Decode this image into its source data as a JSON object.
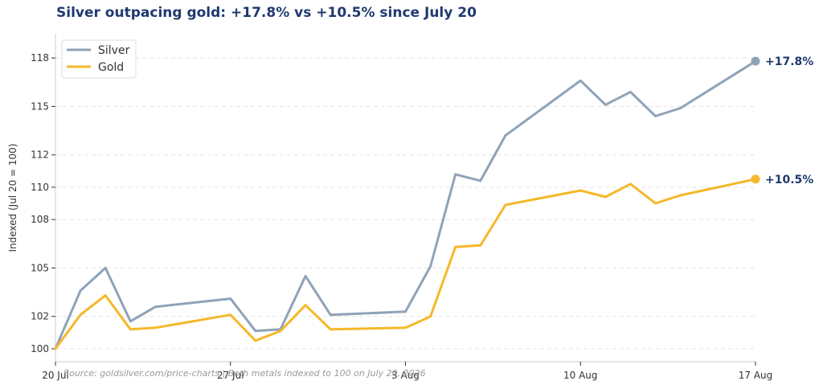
{
  "chart_data": {
    "type": "line",
    "title": "Silver outpacing gold: +17.8% vs +10.5% since July 20",
    "ylabel": "Indexed (Jul 20 = 100)",
    "xlabel": "",
    "source": "Source: goldsilver.com/price-charts | Both metals indexed to 100 on July 20, 2026",
    "ylim": [
      99.2,
      119.5
    ],
    "xlim": [
      "2026-07-20",
      "2026-08-17"
    ],
    "yticks": [
      100,
      102,
      105,
      108,
      110,
      112,
      115,
      118
    ],
    "ytick_labels": [
      "100",
      "102",
      "105",
      "108",
      "110",
      "112",
      "115",
      "118"
    ],
    "xticks": [
      "2026-07-20",
      "2026-07-27",
      "2026-08-03",
      "2026-08-10",
      "2026-08-17"
    ],
    "xtick_labels": [
      "20 Jul",
      "27 Jul",
      "3 Aug",
      "10 Aug",
      "17 Aug"
    ],
    "grid": "horizontal dashed",
    "legend": "top-left",
    "series": [
      {
        "name": "Silver",
        "color": "#8fa3b8",
        "end_label": "+17.8%",
        "points": [
          [
            "2026-07-20",
            100.0
          ],
          [
            "2026-07-21",
            103.6
          ],
          [
            "2026-07-22",
            105.0
          ],
          [
            "2026-07-23",
            101.7
          ],
          [
            "2026-07-24",
            102.6
          ],
          [
            "2026-07-27",
            103.1
          ],
          [
            "2026-07-28",
            101.1
          ],
          [
            "2026-07-29",
            101.2
          ],
          [
            "2026-07-30",
            104.5
          ],
          [
            "2026-07-31",
            102.1
          ],
          [
            "2026-08-03",
            102.3
          ],
          [
            "2026-08-04",
            105.1
          ],
          [
            "2026-08-05",
            110.8
          ],
          [
            "2026-08-06",
            110.4
          ],
          [
            "2026-08-07",
            113.2
          ],
          [
            "2026-08-10",
            116.6
          ],
          [
            "2026-08-11",
            115.1
          ],
          [
            "2026-08-12",
            115.9
          ],
          [
            "2026-08-13",
            114.4
          ],
          [
            "2026-08-14",
            114.9
          ],
          [
            "2026-08-17",
            117.8
          ]
        ]
      },
      {
        "name": "Gold",
        "color": "#f5b82a",
        "end_label": "+10.5%",
        "points": [
          [
            "2026-07-20",
            100.0
          ],
          [
            "2026-07-21",
            102.1
          ],
          [
            "2026-07-22",
            103.3
          ],
          [
            "2026-07-23",
            101.2
          ],
          [
            "2026-07-24",
            101.3
          ],
          [
            "2026-07-27",
            102.1
          ],
          [
            "2026-07-28",
            100.5
          ],
          [
            "2026-07-29",
            101.1
          ],
          [
            "2026-07-30",
            102.7
          ],
          [
            "2026-07-31",
            101.2
          ],
          [
            "2026-08-03",
            101.3
          ],
          [
            "2026-08-04",
            102.0
          ],
          [
            "2026-08-05",
            106.3
          ],
          [
            "2026-08-06",
            106.4
          ],
          [
            "2026-08-07",
            108.9
          ],
          [
            "2026-08-10",
            109.8
          ],
          [
            "2026-08-11",
            109.4
          ],
          [
            "2026-08-12",
            110.2
          ],
          [
            "2026-08-13",
            109.0
          ],
          [
            "2026-08-14",
            109.5
          ],
          [
            "2026-08-17",
            110.5
          ]
        ]
      }
    ]
  }
}
